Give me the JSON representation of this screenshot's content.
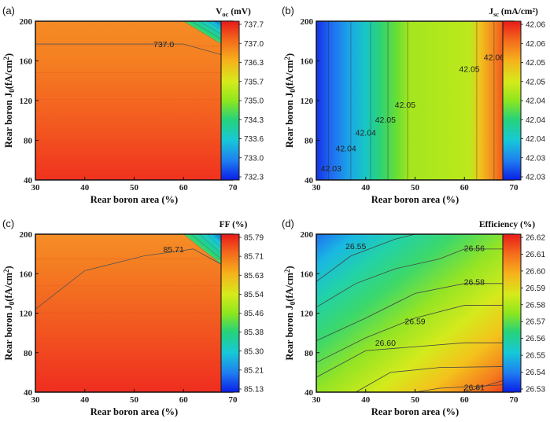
{
  "chart_data": [
    {
      "type": "heatmap",
      "panel_label": "(a)",
      "colorbar_title": "V",
      "colorbar_title_sub": "oc",
      "colorbar_title_unit": " (mV)",
      "colorbar_ticks": [
        "737.7",
        "737.0",
        "736.3",
        "735.7",
        "735.0",
        "734.3",
        "733.6",
        "733.0",
        "732.3"
      ],
      "xlabel": "Rear boron area (%)",
      "ylabel": "Rear boron J0(fA/cm2)",
      "x_ticks": [
        30,
        40,
        50,
        60,
        70
      ],
      "y_ticks": [
        40,
        80,
        120,
        160,
        200
      ],
      "xlim": [
        30,
        70
      ],
      "ylim": [
        40,
        200
      ],
      "contour_labels": [
        {
          "text": "737.0",
          "x": 56,
          "y": 177
        }
      ]
    },
    {
      "type": "heatmap",
      "panel_label": "(b)",
      "colorbar_title": "J",
      "colorbar_title_sub": "sc",
      "colorbar_title_unit": " (mA/cm²)",
      "colorbar_ticks": [
        "42.06",
        "42.06",
        "42.05",
        "42.05",
        "42.04",
        "42.04",
        "42.04",
        "42.03",
        "42.03"
      ],
      "xlabel": "Rear boron area (%)",
      "ylabel": "Rear boron J0(fA/cm2)",
      "x_ticks": [
        30,
        40,
        50,
        60,
        70
      ],
      "y_ticks": [
        40,
        80,
        120,
        160,
        200
      ],
      "xlim": [
        30,
        70
      ],
      "ylim": [
        40,
        200
      ],
      "contour_labels": [
        {
          "text": "42.03",
          "x": 33,
          "y": 52
        },
        {
          "text": "42.04",
          "x": 36,
          "y": 72
        },
        {
          "text": "42.04",
          "x": 40,
          "y": 88
        },
        {
          "text": "42.05",
          "x": 44,
          "y": 101
        },
        {
          "text": "42.05",
          "x": 48,
          "y": 116
        },
        {
          "text": "42.05",
          "x": 61,
          "y": 152
        },
        {
          "text": "42.06",
          "x": 66,
          "y": 164
        }
      ]
    },
    {
      "type": "heatmap",
      "panel_label": "(c)",
      "colorbar_title": "FF (%)",
      "colorbar_title_sub": "",
      "colorbar_title_unit": "",
      "colorbar_ticks": [
        "85.79",
        "85.71",
        "85.63",
        "85.54",
        "85.46",
        "85.38",
        "85.30",
        "85.21",
        "85.13"
      ],
      "xlabel": "Rear boron area (%)",
      "ylabel": "Rear boron J0(fA/cm2)",
      "x_ticks": [
        30,
        40,
        50,
        60,
        70
      ],
      "y_ticks": [
        40,
        80,
        120,
        160,
        200
      ],
      "xlim": [
        30,
        70
      ],
      "ylim": [
        40,
        200
      ],
      "contour_labels": [
        {
          "text": "85.71",
          "x": 58,
          "y": 185
        }
      ]
    },
    {
      "type": "heatmap",
      "panel_label": "(d)",
      "colorbar_title": "Efficiency (%)",
      "colorbar_title_sub": "",
      "colorbar_title_unit": "",
      "colorbar_ticks": [
        "26.62",
        "26.61",
        "26.60",
        "26.59",
        "26.58",
        "26.57",
        "26.56",
        "26.55",
        "26.54",
        "26.53"
      ],
      "xlabel": "Rear boron area (%)",
      "ylabel": "Rear boron J0(fA/cm2)",
      "x_ticks": [
        30,
        40,
        50,
        60,
        70
      ],
      "y_ticks": [
        40,
        80,
        120,
        160,
        200
      ],
      "xlim": [
        30,
        70
      ],
      "ylim": [
        40,
        200
      ],
      "contour_labels": [
        {
          "text": "26.55",
          "x": 38,
          "y": 188
        },
        {
          "text": "26.56",
          "x": 62,
          "y": 186
        },
        {
          "text": "26.58",
          "x": 62,
          "y": 152
        },
        {
          "text": "26.59",
          "x": 50,
          "y": 112
        },
        {
          "text": "26.60",
          "x": 44,
          "y": 90
        },
        {
          "text": "26.61",
          "x": 62,
          "y": 45
        }
      ]
    }
  ],
  "ylabel_sub_J": "0",
  "ylabel_sup_cm": "2"
}
